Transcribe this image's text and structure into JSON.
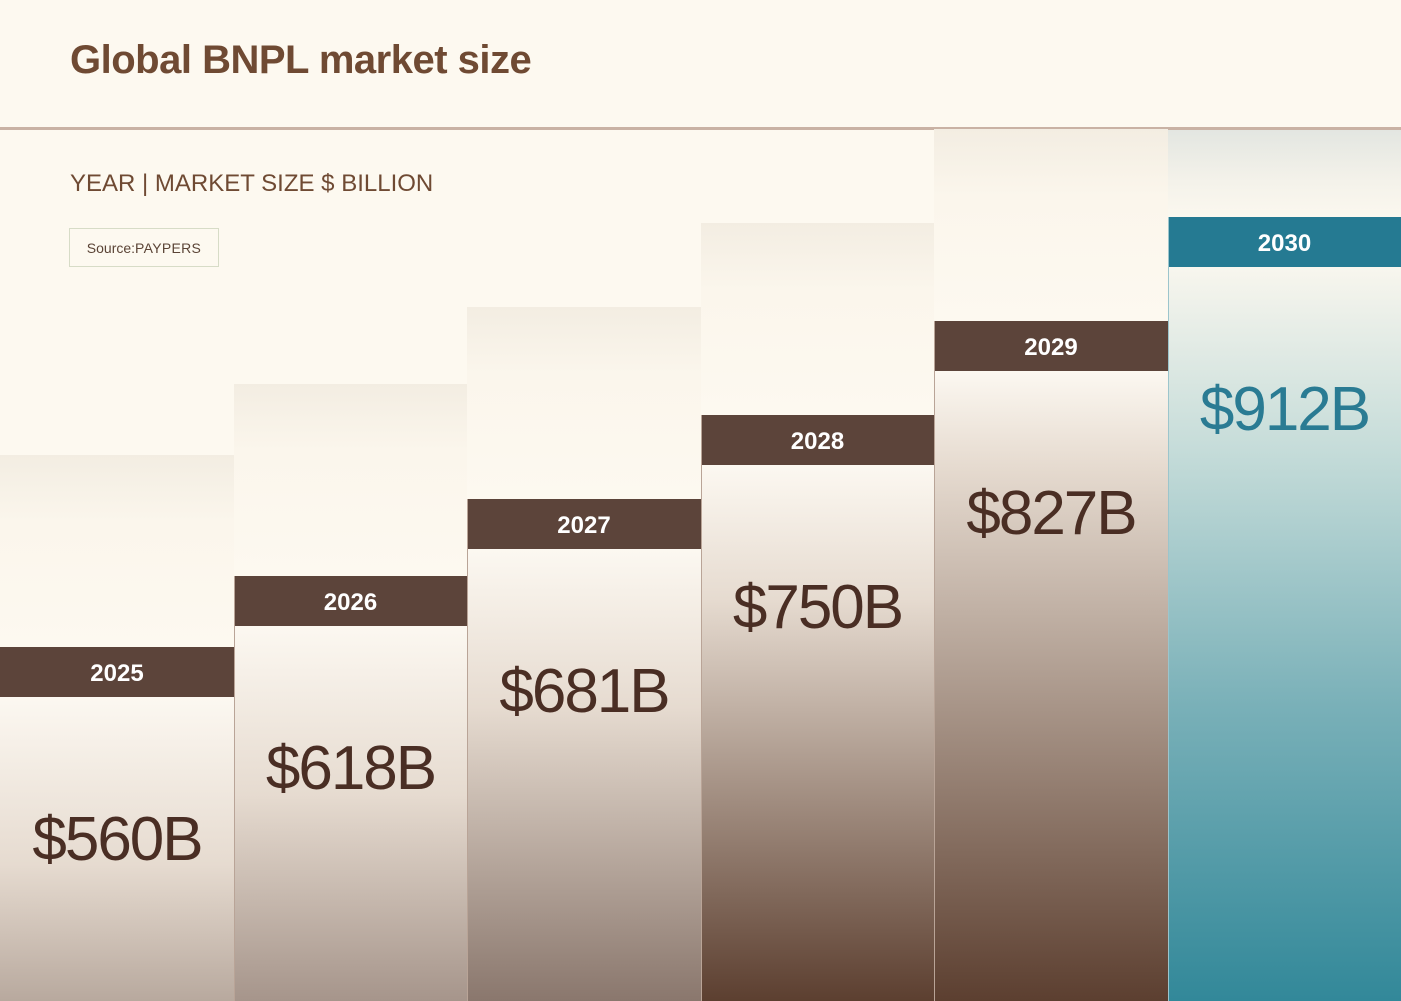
{
  "title": "Global BNPL market size",
  "subtitle": "YEAR | MARKET SIZE $ BILLION",
  "source": {
    "prefix": "Source: ",
    "name": "PAYPERS"
  },
  "colors": {
    "background": "#fdf9f0",
    "title": "#6f4a33",
    "bar_header": "#5c443a",
    "bar_header_highlight": "#257a92",
    "bar_bottom": "#5c3f30",
    "bar_bottom_highlight": "#328899",
    "value_text": "#4a2e24",
    "value_text_highlight": "#2a7b93"
  },
  "chart_data": {
    "type": "bar",
    "title": "Global BNPL market size",
    "subtitle": "YEAR | MARKET SIZE $ BILLION",
    "categories": [
      "2025",
      "2026",
      "2027",
      "2028",
      "2029",
      "2030"
    ],
    "values": [
      560,
      618,
      681,
      750,
      827,
      912
    ],
    "value_labels": [
      "$560B",
      "$618B",
      "$681B",
      "$750B",
      "$827B",
      "$912B"
    ],
    "highlight_index": 5,
    "unit": "$ billion",
    "grid": false
  }
}
